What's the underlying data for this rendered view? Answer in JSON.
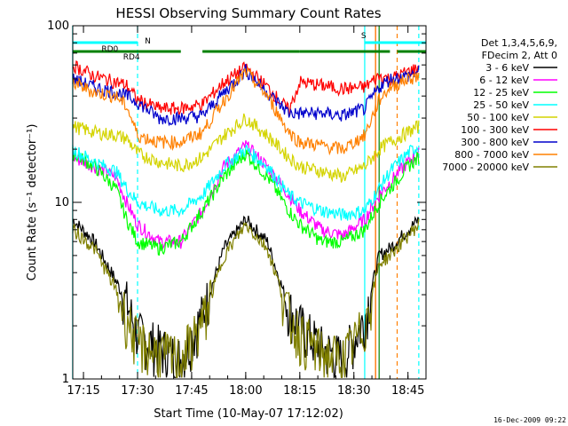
{
  "page": {
    "title": "HESSI Observing Summary Count Rates",
    "footer_date": "16-Dec-2009 09:22"
  },
  "chart_data": {
    "type": "line",
    "title": "HESSI Observing Summary Count Rates",
    "xlabel": "Start Time (10-May-07 17:12:02)",
    "ylabel": "Count Rate (s⁻¹ detector⁻¹)",
    "y_scale": "log",
    "ylim": [
      1,
      100
    ],
    "xlim": [
      "17:12:02",
      "18:50:00"
    ],
    "x_ticks": [
      "17:15",
      "17:30",
      "17:45",
      "18:00",
      "18:15",
      "18:30",
      "18:45"
    ],
    "y_ticks": [
      "1",
      "10",
      "100"
    ],
    "grid": false,
    "legend_position": "right",
    "legend_header": [
      "Det 1,3,4,5,6,9,",
      "FDecim 2, Att 0"
    ],
    "series": [
      {
        "name": "3 - 6 keV",
        "color": "#000000",
        "x": [
          "17:12",
          "17:18",
          "17:24",
          "17:27",
          "17:30",
          "17:36",
          "17:42",
          "17:48",
          "17:54",
          "18:00",
          "18:06",
          "18:12",
          "18:15",
          "18:21",
          "18:27",
          "18:33",
          "18:37",
          "18:40",
          "18:45",
          "18:48"
        ],
        "values": [
          8,
          6,
          3.6,
          2.7,
          1.8,
          1.5,
          1.3,
          2.3,
          5.5,
          8,
          6,
          2.5,
          2,
          1.5,
          1.3,
          2.2,
          5,
          5.5,
          7,
          8
        ]
      },
      {
        "name": "6 - 12 keV",
        "color": "#ff00ff",
        "x": [
          "17:12",
          "17:18",
          "17:24",
          "17:27",
          "17:30",
          "17:36",
          "17:42",
          "17:48",
          "17:54",
          "18:00",
          "18:06",
          "18:12",
          "18:15",
          "18:21",
          "18:27",
          "18:33",
          "18:37",
          "18:40",
          "18:45",
          "18:48"
        ],
        "values": [
          18,
          16,
          14,
          10,
          7.5,
          6,
          6,
          9,
          16,
          21,
          16,
          11,
          9,
          7,
          6.5,
          8,
          11,
          13,
          17,
          19
        ]
      },
      {
        "name": "12 - 25 keV",
        "color": "#00ff00",
        "x": [
          "17:12",
          "17:18",
          "17:24",
          "17:27",
          "17:30",
          "17:36",
          "17:42",
          "17:48",
          "17:54",
          "18:00",
          "18:06",
          "18:12",
          "18:15",
          "18:21",
          "18:27",
          "18:33",
          "18:37",
          "18:40",
          "18:45",
          "18:48"
        ],
        "values": [
          19,
          16,
          12,
          8,
          6,
          5.5,
          6,
          9,
          14,
          19,
          14,
          9,
          7.5,
          6,
          6,
          7,
          10,
          12,
          16,
          18
        ]
      },
      {
        "name": "25 - 50 keV",
        "color": "#00ffff",
        "x": [
          "17:12",
          "17:18",
          "17:24",
          "17:27",
          "17:30",
          "17:36",
          "17:42",
          "17:48",
          "17:54",
          "18:00",
          "18:06",
          "18:12",
          "18:15",
          "18:21",
          "18:27",
          "18:33",
          "18:37",
          "18:40",
          "18:45",
          "18:48"
        ],
        "values": [
          20,
          17,
          15,
          12,
          10,
          9,
          9,
          11,
          16,
          20,
          16,
          11,
          10,
          9,
          8.5,
          9,
          12,
          15,
          19,
          21
        ]
      },
      {
        "name": "50 - 100 keV",
        "color": "#d4d400",
        "x": [
          "17:12",
          "17:18",
          "17:24",
          "17:27",
          "17:30",
          "17:36",
          "17:42",
          "17:48",
          "17:54",
          "18:00",
          "18:06",
          "18:12",
          "18:15",
          "18:21",
          "18:27",
          "18:33",
          "18:37",
          "18:40",
          "18:45",
          "18:48"
        ],
        "values": [
          27,
          25,
          24,
          23,
          19,
          17,
          16,
          18,
          24,
          30,
          24,
          18,
          16,
          15,
          14,
          16,
          20,
          22,
          25,
          27
        ]
      },
      {
        "name": "100 - 300 keV",
        "color": "#ff0000",
        "x": [
          "17:12",
          "17:18",
          "17:24",
          "17:27",
          "17:30",
          "17:36",
          "17:42",
          "17:48",
          "17:54",
          "18:00",
          "18:06",
          "18:12",
          "18:15",
          "18:21",
          "18:27",
          "18:33",
          "18:37",
          "18:40",
          "18:45",
          "18:48"
        ],
        "values": [
          60,
          52,
          48,
          46,
          38,
          34,
          34,
          36,
          48,
          58,
          45,
          33,
          48,
          46,
          44,
          45,
          52,
          50,
          55,
          58
        ]
      },
      {
        "name": "300 - 800 keV",
        "color": "#0000cc",
        "x": [
          "17:12",
          "17:18",
          "17:24",
          "17:27",
          "17:30",
          "17:36",
          "17:42",
          "17:48",
          "17:54",
          "18:00",
          "18:06",
          "18:12",
          "18:15",
          "18:21",
          "18:27",
          "18:33",
          "18:37",
          "18:40",
          "18:45",
          "18:48"
        ],
        "values": [
          50,
          45,
          42,
          40,
          37,
          30,
          30,
          31,
          42,
          56,
          42,
          32,
          32,
          32,
          31,
          34,
          45,
          50,
          52,
          55
        ]
      },
      {
        "name": "800 - 7000 keV",
        "color": "#ff8000",
        "x": [
          "17:12",
          "17:18",
          "17:24",
          "17:27",
          "17:30",
          "17:36",
          "17:42",
          "17:48",
          "17:54",
          "18:00",
          "18:06",
          "18:12",
          "18:15",
          "18:21",
          "18:27",
          "18:33",
          "18:37",
          "18:40",
          "18:45",
          "18:48"
        ],
        "values": [
          48,
          42,
          40,
          35,
          24,
          22,
          22,
          25,
          38,
          55,
          40,
          25,
          22,
          21,
          20,
          24,
          38,
          45,
          50,
          52
        ]
      },
      {
        "name": "7000 - 20000 keV",
        "color": "#808000",
        "x": [
          "17:12",
          "17:18",
          "17:24",
          "17:27",
          "17:30",
          "17:36",
          "17:42",
          "17:48",
          "17:54",
          "18:00",
          "18:06",
          "18:12",
          "18:15",
          "18:21",
          "18:27",
          "18:33",
          "18:37",
          "18:40",
          "18:45",
          "18:48"
        ],
        "values": [
          7,
          5.5,
          3.2,
          2.2,
          1.6,
          1.4,
          1.3,
          2.1,
          5,
          7.5,
          5.5,
          2.3,
          1.8,
          1.4,
          1.3,
          2,
          4.5,
          5,
          6.5,
          7.5
        ]
      }
    ],
    "annotations": [
      {
        "label": "N",
        "color": "#00ffff"
      },
      {
        "label": "RD0",
        "color": "#008000"
      },
      {
        "label": "RD4",
        "color": "#008000"
      },
      {
        "label": "S",
        "color": "#ff8000"
      }
    ],
    "event_bars": [
      {
        "color": "#00ffff",
        "start": "17:12",
        "end": "17:30"
      },
      {
        "color": "#00ffff",
        "start": "18:33",
        "end": "18:50"
      },
      {
        "color": "#008000",
        "start": "17:12",
        "end": "17:42"
      },
      {
        "color": "#008000",
        "start": "17:48",
        "end": "18:15"
      },
      {
        "color": "#008000",
        "start": "18:15",
        "end": "18:40"
      },
      {
        "color": "#008000",
        "start": "18:42",
        "end": "18:50"
      }
    ],
    "vertical_lines": [
      {
        "at": "17:12",
        "color": "#00ffff",
        "style": "solid"
      },
      {
        "at": "17:30",
        "color": "#00ffff",
        "style": "dashed"
      },
      {
        "at": "18:33",
        "color": "#00ffff",
        "style": "solid"
      },
      {
        "at": "18:48",
        "color": "#00ffff",
        "style": "dashed"
      },
      {
        "at": "18:36",
        "color": "#ff0000",
        "style": "solid"
      },
      {
        "at": "18:36",
        "color": "#ff8000",
        "style": "solid"
      },
      {
        "at": "18:42",
        "color": "#ff8000",
        "style": "dashed"
      },
      {
        "at": "18:37",
        "color": "#008000",
        "style": "solid"
      }
    ]
  }
}
